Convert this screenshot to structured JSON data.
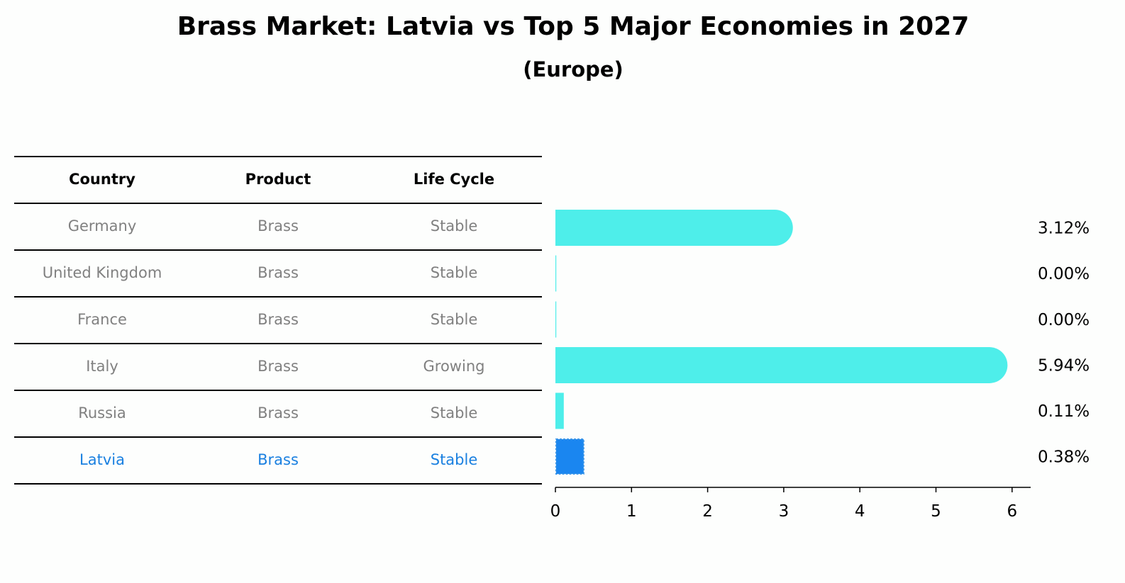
{
  "title": "Brass Market: Latvia vs Top 5 Major Economies in 2027",
  "subtitle": "(Europe)",
  "table": {
    "headers": [
      "Country",
      "Product",
      "Life Cycle"
    ],
    "rows": [
      {
        "country": "Germany",
        "product": "Brass",
        "life_cycle": "Stable"
      },
      {
        "country": "United Kingdom",
        "product": "Brass",
        "life_cycle": "Stable"
      },
      {
        "country": "France",
        "product": "Brass",
        "life_cycle": "Stable"
      },
      {
        "country": "Italy",
        "product": "Brass",
        "life_cycle": "Growing"
      },
      {
        "country": "Russia",
        "product": "Brass",
        "life_cycle": "Stable"
      },
      {
        "country": "Latvia",
        "product": "Brass",
        "life_cycle": "Stable"
      }
    ],
    "highlight_row": "Latvia"
  },
  "chart_data": {
    "type": "bar",
    "orientation": "horizontal",
    "title": "Brass Market: Latvia vs Top 5 Major Economies in 2027",
    "subtitle": "(Europe)",
    "categories": [
      "Germany",
      "United Kingdom",
      "France",
      "Italy",
      "Russia",
      "Latvia"
    ],
    "values": [
      3.12,
      0.0,
      0.0,
      5.94,
      0.11,
      0.38
    ],
    "value_labels": [
      "3.12%",
      "0.00%",
      "0.00%",
      "5.94%",
      "0.11%",
      "0.38%"
    ],
    "xlim": [
      0,
      6.25
    ],
    "xticks": [
      0,
      1,
      2,
      3,
      4,
      5,
      6
    ],
    "xlabel": "",
    "ylabel": "",
    "grid": false,
    "highlight": "Latvia",
    "colors": {
      "bar": "#4eeeea",
      "highlight": "#1a86f0"
    }
  }
}
